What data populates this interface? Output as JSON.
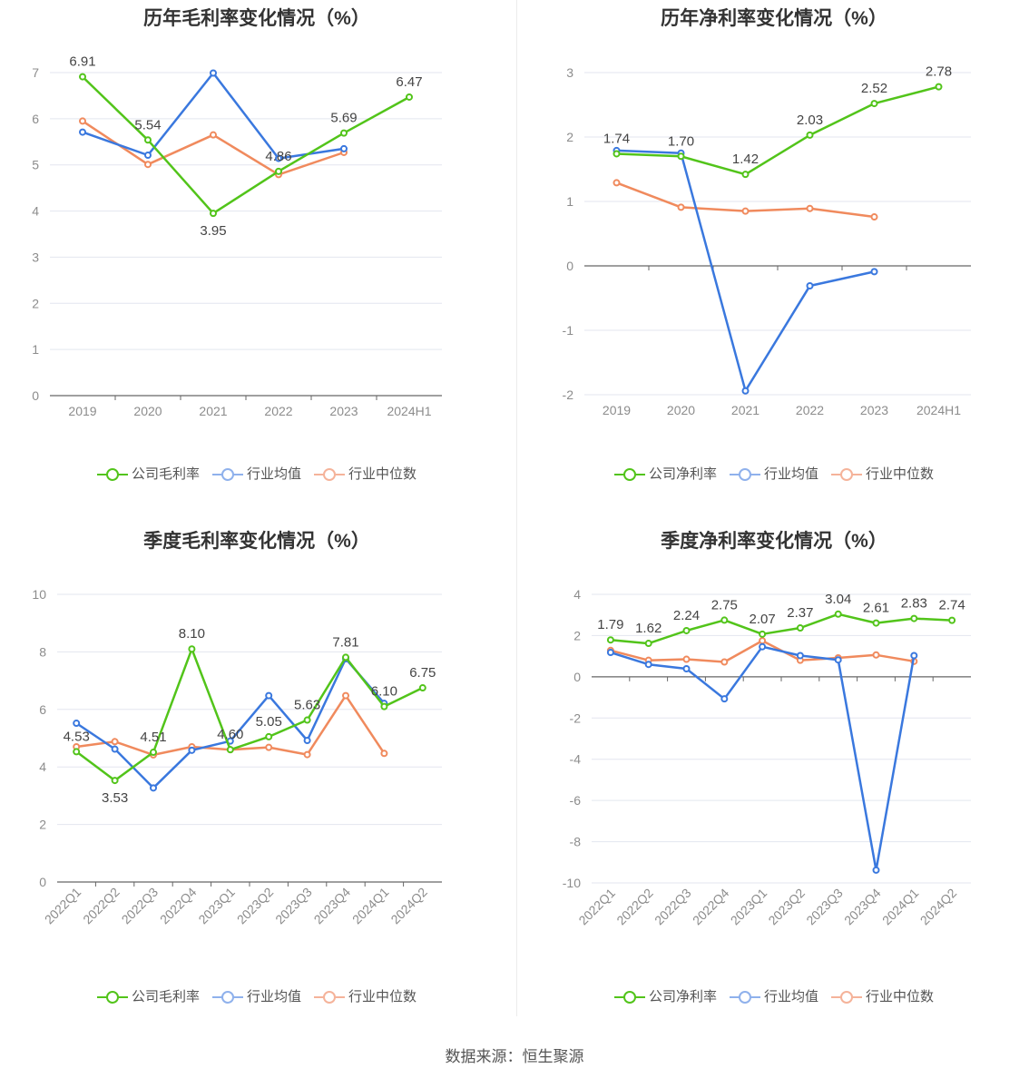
{
  "source_label": "数据来源：恒生聚源",
  "colors": {
    "company": "#52c41a",
    "avg": "#3a78de",
    "median": "#f08a5d",
    "axis": "#666666",
    "grid": "#e3e6ef",
    "tick": "#8c8c8c",
    "label": "#444444"
  },
  "charts": [
    {
      "id": "annual-gross",
      "title": "历年毛利率变化情况（%）",
      "legend": [
        "公司毛利率",
        "行业均值",
        "行业中位数"
      ],
      "chart_data": {
        "type": "line",
        "categories": [
          "2019",
          "2020",
          "2021",
          "2022",
          "2023",
          "2024H1"
        ],
        "ylim": [
          0,
          7
        ],
        "yticks": [
          0,
          1,
          2,
          3,
          4,
          5,
          6,
          7
        ],
        "series": [
          {
            "name": "公司毛利率",
            "values": [
              6.91,
              5.54,
              3.95,
              4.86,
              5.69,
              6.47
            ],
            "labels": [
              "6.91",
              "5.54",
              "3.95",
              "4.86",
              "5.69",
              "6.47"
            ]
          },
          {
            "name": "行业均值",
            "values": [
              5.71,
              5.21,
              6.99,
              5.14,
              5.35,
              null
            ]
          },
          {
            "name": "行业中位数",
            "values": [
              5.95,
              5.01,
              5.65,
              4.79,
              5.27,
              null
            ]
          }
        ]
      }
    },
    {
      "id": "annual-net",
      "title": "历年净利率变化情况（%）",
      "legend": [
        "公司净利率",
        "行业均值",
        "行业中位数"
      ],
      "chart_data": {
        "type": "line",
        "categories": [
          "2019",
          "2020",
          "2021",
          "2022",
          "2023",
          "2024H1"
        ],
        "ylim": [
          -2,
          3
        ],
        "yticks": [
          -2,
          -1,
          0,
          1,
          2,
          3
        ],
        "series": [
          {
            "name": "公司净利率",
            "values": [
              1.74,
              1.7,
              1.42,
              2.03,
              2.52,
              2.78
            ],
            "labels": [
              "1.74",
              "1.70",
              "1.42",
              "2.03",
              "2.52",
              "2.78"
            ]
          },
          {
            "name": "行业均值",
            "values": [
              1.79,
              1.75,
              -1.94,
              -0.31,
              -0.09,
              null
            ]
          },
          {
            "name": "行业中位数",
            "values": [
              1.29,
              0.91,
              0.85,
              0.89,
              0.76,
              null
            ]
          }
        ]
      }
    },
    {
      "id": "quarterly-gross",
      "title": "季度毛利率变化情况（%）",
      "legend": [
        "公司毛利率",
        "行业均值",
        "行业中位数"
      ],
      "chart_data": {
        "type": "line",
        "categories": [
          "2022Q1",
          "2022Q2",
          "2022Q3",
          "2022Q4",
          "2023Q1",
          "2023Q2",
          "2023Q3",
          "2023Q4",
          "2024Q1",
          "2024Q2"
        ],
        "ylim": [
          0,
          10
        ],
        "yticks": [
          0,
          2,
          4,
          6,
          8,
          10
        ],
        "series": [
          {
            "name": "公司毛利率",
            "values": [
              4.53,
              3.53,
              4.51,
              8.1,
              4.6,
              5.05,
              5.63,
              7.81,
              6.1,
              6.75
            ],
            "labels": [
              "4.53",
              "3.53",
              "4.51",
              "8.10",
              "4.60",
              "5.05",
              "5.63",
              "7.81",
              "6.10",
              "6.75"
            ]
          },
          {
            "name": "行业均值",
            "values": [
              5.52,
              4.62,
              3.27,
              4.58,
              4.9,
              6.48,
              4.92,
              7.76,
              6.21,
              null
            ]
          },
          {
            "name": "行业中位数",
            "values": [
              4.7,
              4.88,
              4.42,
              4.7,
              4.6,
              4.68,
              4.43,
              6.48,
              4.47,
              null
            ]
          }
        ]
      }
    },
    {
      "id": "quarterly-net",
      "title": "季度净利率变化情况（%）",
      "legend": [
        "公司净利率",
        "行业均值",
        "行业中位数"
      ],
      "chart_data": {
        "type": "line",
        "categories": [
          "2022Q1",
          "2022Q2",
          "2022Q3",
          "2022Q4",
          "2023Q1",
          "2023Q2",
          "2023Q3",
          "2023Q4",
          "2024Q1",
          "2024Q2"
        ],
        "ylim": [
          -10,
          4
        ],
        "yticks": [
          -10,
          -8,
          -6,
          -4,
          -2,
          0,
          2,
          4
        ],
        "series": [
          {
            "name": "公司净利率",
            "values": [
              1.79,
              1.62,
              2.24,
              2.75,
              2.07,
              2.37,
              3.04,
              2.61,
              2.83,
              2.74
            ],
            "labels": [
              "1.79",
              "1.62",
              "2.24",
              "2.75",
              "2.07",
              "2.37",
              "3.04",
              "2.61",
              "2.83",
              "2.74"
            ]
          },
          {
            "name": "行业均值",
            "values": [
              1.18,
              0.6,
              0.39,
              -1.07,
              1.46,
              1.03,
              0.82,
              -9.38,
              1.03,
              null
            ]
          },
          {
            "name": "行业中位数",
            "values": [
              1.28,
              0.8,
              0.85,
              0.72,
              1.75,
              0.8,
              0.92,
              1.06,
              0.75,
              null
            ]
          }
        ]
      }
    }
  ]
}
